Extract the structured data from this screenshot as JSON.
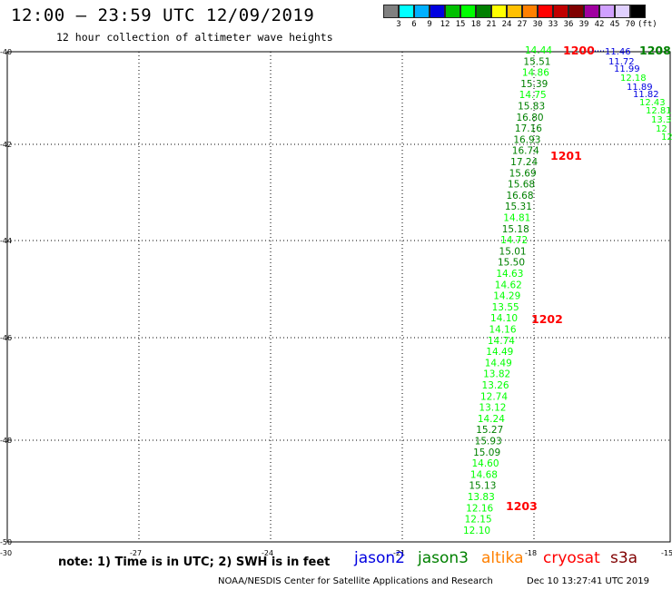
{
  "header": {
    "title": "12:00 — 23:59 UTC 12/09/2019",
    "subtitle": "12 hour collection of altimeter wave heights"
  },
  "scale": {
    "colors": [
      "#808080",
      "#00ffff",
      "#00b0ff",
      "#0000e0",
      "#00c000",
      "#00ff00",
      "#008000",
      "#ffff00",
      "#ffc000",
      "#ff8000",
      "#ff0000",
      "#c00000",
      "#800000",
      "#a000a0",
      "#d0a0ff",
      "#e0d0ff",
      "#000000"
    ],
    "labels": [
      "3",
      "6",
      "9",
      "12",
      "15",
      "18",
      "21",
      "24",
      "27",
      "30",
      "33",
      "36",
      "39",
      "42",
      "45",
      "70"
    ],
    "unit": "(ft)"
  },
  "axes": {
    "lat_labels": [
      "-40",
      "-42",
      "-44",
      "-46",
      "-48",
      "-50"
    ],
    "lon_labels": [
      "-30",
      "-27",
      "-24",
      "-21",
      "-18",
      "-15"
    ]
  },
  "tracks": {
    "main_heights": [
      "14.44",
      "15.51",
      "14.86",
      "15.39",
      "14.75",
      "15.83",
      "16.80",
      "17.16",
      "16.93",
      "16.74",
      "17.24",
      "15.69",
      "15.68",
      "16.68",
      "15.31",
      "14.81",
      "15.18",
      "14.72",
      "15.01",
      "15.50",
      "14.63",
      "14.62",
      "14.29",
      "13.55",
      "14.10",
      "14.16",
      "14.74",
      "14.49",
      "14.49",
      "13.82",
      "13.26",
      "12.74",
      "13.12",
      "14.24",
      "15.27",
      "15.93",
      "15.09",
      "14.60",
      "14.68",
      "15.13",
      "13.83",
      "12.16",
      "12.15",
      "12.10"
    ],
    "main_colors": [
      "#00ff00",
      "#008000",
      "#00ff00",
      "#008000",
      "#00ff00",
      "#008000",
      "#008000",
      "#008000",
      "#008000",
      "#008000",
      "#008000",
      "#008000",
      "#008000",
      "#008000",
      "#008000",
      "#00ff00",
      "#008000",
      "#00ff00",
      "#008000",
      "#008000",
      "#00ff00",
      "#00ff00",
      "#00ff00",
      "#00ff00",
      "#00ff00",
      "#00ff00",
      "#00ff00",
      "#00ff00",
      "#00ff00",
      "#00ff00",
      "#00ff00",
      "#00ff00",
      "#00ff00",
      "#00ff00",
      "#008000",
      "#008000",
      "#008000",
      "#00ff00",
      "#00ff00",
      "#008000",
      "#00ff00",
      "#00ff00",
      "#00ff00",
      "#00ff00"
    ],
    "right_heights": [
      "11.46",
      "11.72",
      "11.99",
      "12.18",
      "11.89",
      "11.82",
      "12.43",
      "12.81",
      "13.3",
      "12",
      "12"
    ],
    "right_colors": [
      "#0000e0",
      "#0000e0",
      "#0000e0",
      "#00ff00",
      "#0000e0",
      "#0000e0",
      "#00ff00",
      "#00ff00",
      "#00ff00",
      "#00ff00",
      "#00ff00"
    ],
    "time_labels": [
      "1200",
      "1201",
      "1202",
      "1203"
    ],
    "time_label_right": "1208"
  },
  "footer": {
    "note": "note:  1) Time is in UTC;  2) SWH is in feet",
    "satellites": [
      {
        "name": "jason2",
        "color": "#0000e0"
      },
      {
        "name": "jason3",
        "color": "#008000"
      },
      {
        "name": "altika",
        "color": "#ff8000"
      },
      {
        "name": "cryosat",
        "color": "#ff0000"
      },
      {
        "name": "s3a",
        "color": "#800000"
      }
    ],
    "credit": "NOAA/NESDIS Center for Satellite Applications and Research",
    "timestamp": "Dec 10 13:27:41 UTC 2019"
  }
}
